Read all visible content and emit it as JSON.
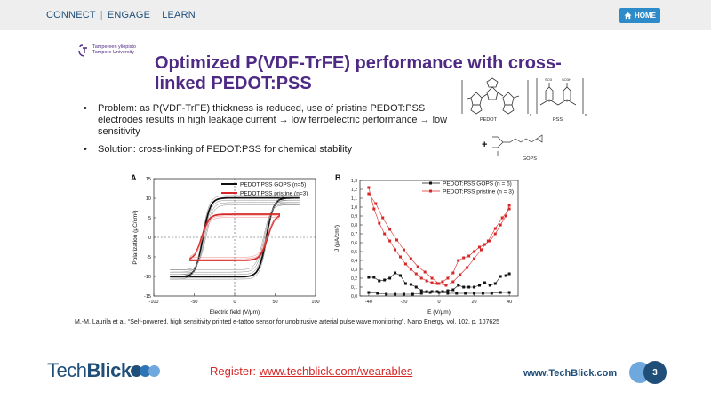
{
  "nav": {
    "items": [
      "CONNECT",
      "ENGAGE",
      "LEARN"
    ],
    "home": "HOME"
  },
  "logo": {
    "line1": "Tampereen yliopisto",
    "line2": "Tampere University"
  },
  "slide": {
    "title": "Optimized P(VDF-TrFE) performance with cross-linked PEDOT:PSS",
    "bullets": [
      "Problem: as P(VDF-TrFE) thickness is reduced, use of pristine PEDOT:PSS electrodes results in high leakage current → low ferroelectric performance → low sensitivity",
      "Solution: cross-linking of PEDOT:PSS for chemical stability"
    ],
    "citation": "M.-M. Laurila et al. “Self-powered, high sensitivity printed e-tattoo sensor for unobtrusive arterial pulse wave monitoring”, Nano Energy, vol. 102, p. 107625"
  },
  "chem_labels": {
    "pedot": "PEDOT",
    "pss": "PSS",
    "gops": "GOPS",
    "plus": "+",
    "n": "n",
    "so3": "SO3",
    "so3h": "SO3H"
  },
  "colors": {
    "purple": "#4e2a84",
    "navy": "#1f4e79",
    "red": "#d62828",
    "light_blue": "#6fa8dc",
    "series_black": "#111111",
    "series_red": "#d62828"
  },
  "chart_data": [
    {
      "type": "line",
      "panel": "A",
      "xlabel": "Electric field (V/μm)",
      "ylabel": "Polarization (μC/cm²)",
      "xlim": [
        -100,
        100
      ],
      "ylim": [
        -15,
        15
      ],
      "xticks": [
        -100,
        -50,
        0,
        50,
        100
      ],
      "yticks": [
        -15,
        -10,
        -5,
        0,
        5,
        10,
        15
      ],
      "legend_position": "top-right",
      "series": [
        {
          "name": "PEDOT:PSS GOPS (n=5)",
          "color": "#111111",
          "amplitude": 80,
          "ps": 9.5,
          "ec": 38
        },
        {
          "name": "PEDOT:PSS pristine (n=3)",
          "color": "#d62828",
          "amplitude": 55,
          "ps": 5.5,
          "ec": 40
        }
      ]
    },
    {
      "type": "line",
      "panel": "B",
      "xlabel": "E (V/μm)",
      "ylabel": "J (μA/cm²)",
      "xlim": [
        -45,
        45
      ],
      "ylim": [
        0,
        1.3
      ],
      "xticks": [
        -40,
        -20,
        0,
        20,
        40
      ],
      "yticks": [
        0.0,
        0.1,
        0.2,
        0.3,
        0.4,
        0.5,
        0.6,
        0.7,
        0.8,
        0.9,
        1.0,
        1.1,
        1.2,
        1.3
      ],
      "legend_position": "top-right",
      "series": [
        {
          "name": "PEDOT:PSS GOPS (n = 5)",
          "color": "#111111",
          "x": [
            -40,
            -37,
            -34,
            -31,
            -28,
            -25,
            -22,
            -19,
            -16,
            -13,
            -10,
            -7,
            -4,
            -1,
            2,
            5,
            8,
            11,
            14,
            17,
            20,
            23,
            26,
            29,
            32,
            35,
            38,
            40
          ],
          "y": [
            0.21,
            0.21,
            0.17,
            0.18,
            0.2,
            0.26,
            0.23,
            0.14,
            0.13,
            0.1,
            0.06,
            0.05,
            0.05,
            0.05,
            0.05,
            0.06,
            0.07,
            0.12,
            0.1,
            0.1,
            0.1,
            0.12,
            0.15,
            0.12,
            0.14,
            0.22,
            0.23,
            0.25
          ]
        },
        {
          "name": "PEDOT:PSS GOPS (n = 5) return",
          "color": "#111111",
          "x": [
            -40,
            -35,
            -30,
            -25,
            -20,
            -15,
            -10,
            -5,
            0,
            5,
            10,
            15,
            20,
            25,
            30,
            35,
            40
          ],
          "y": [
            0.04,
            0.03,
            0.02,
            0.02,
            0.02,
            0.02,
            0.03,
            0.04,
            0.04,
            0.03,
            0.03,
            0.03,
            0.03,
            0.03,
            0.03,
            0.04,
            0.04
          ]
        },
        {
          "name": "PEDOT:PSS pristine (n = 3)",
          "color": "#d62828",
          "x": [
            -40,
            -37,
            -34,
            -31,
            -28,
            -25,
            -22,
            -19,
            -16,
            -13,
            -10,
            -7,
            -4,
            -1,
            2,
            5,
            8,
            11,
            14,
            17,
            20,
            23,
            26,
            29,
            32,
            35,
            38,
            40
          ],
          "y": [
            1.22,
            0.98,
            0.82,
            0.7,
            0.62,
            0.52,
            0.44,
            0.36,
            0.3,
            0.25,
            0.2,
            0.17,
            0.15,
            0.14,
            0.16,
            0.2,
            0.26,
            0.4,
            0.43,
            0.45,
            0.5,
            0.55,
            0.58,
            0.62,
            0.7,
            0.8,
            0.9,
            1.02
          ]
        },
        {
          "name": "PEDOT:PSS pristine (n = 3) return",
          "color": "#d62828",
          "x": [
            -40,
            -36,
            -32,
            -28,
            -24,
            -20,
            -16,
            -12,
            -8,
            -4,
            0,
            4,
            8,
            12,
            16,
            20,
            24,
            28,
            32,
            36,
            40
          ],
          "y": [
            1.15,
            1.04,
            0.88,
            0.75,
            0.63,
            0.52,
            0.42,
            0.33,
            0.27,
            0.2,
            0.14,
            0.12,
            0.16,
            0.24,
            0.32,
            0.42,
            0.52,
            0.62,
            0.76,
            0.88,
            0.98
          ]
        }
      ],
      "legend": [
        "PEDOT:PSS GOPS (n = 5)",
        "PEDOT:PSS pristine (n = 3)"
      ]
    }
  ],
  "footer": {
    "brand_light": "Tech",
    "brand_bold": "Blick",
    "register_label": "Register: ",
    "register_link": "www.techblick.com/wearables",
    "site": "www.TechBlick.com",
    "page": "3"
  }
}
